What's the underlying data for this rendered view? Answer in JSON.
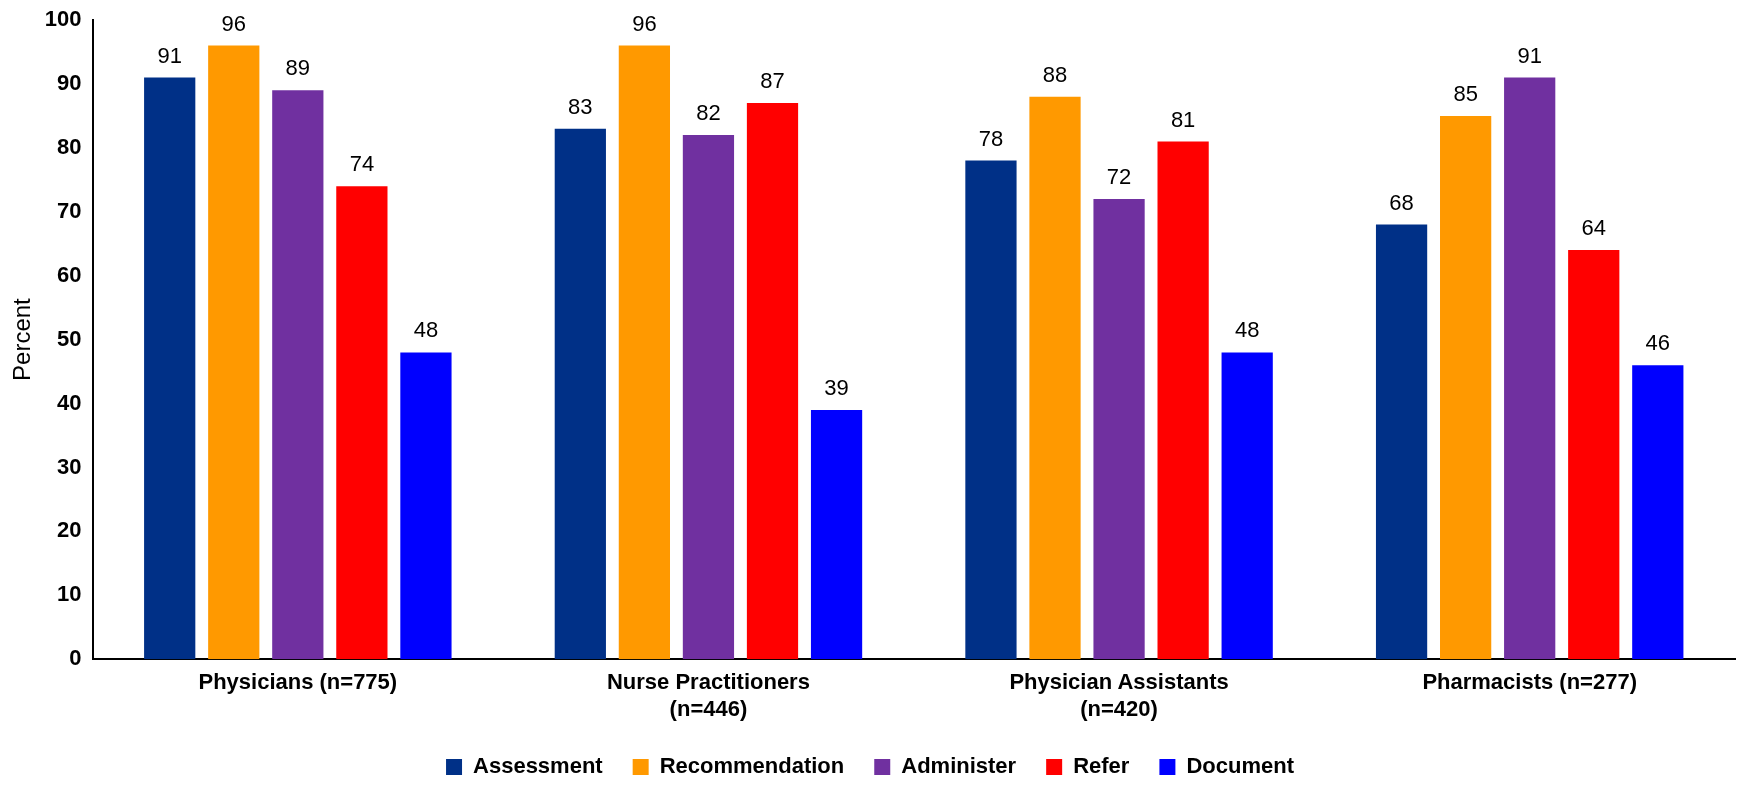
{
  "chart_data": {
    "type": "bar",
    "ylabel": "Percent",
    "categories": [
      "Physicians (n=775)",
      "Nurse Practitioners (n=446)",
      "Physician Assistants (n=420)",
      "Pharmacists (n=277)"
    ],
    "series": [
      {
        "name": "Assessment",
        "color": "#003087",
        "values": [
          91,
          83,
          78,
          68
        ]
      },
      {
        "name": "Recommendation",
        "color": "#ff9900",
        "values": [
          96,
          96,
          88,
          85
        ]
      },
      {
        "name": "Administer",
        "color": "#7030a0",
        "values": [
          89,
          82,
          72,
          91
        ]
      },
      {
        "name": "Refer",
        "color": "#ff0000",
        "values": [
          74,
          87,
          81,
          64
        ]
      },
      {
        "name": "Document",
        "color": "#0000ff",
        "values": [
          48,
          39,
          48,
          46
        ]
      }
    ],
    "ylim": [
      0,
      100
    ],
    "yticks": [
      0,
      10,
      20,
      30,
      40,
      50,
      60,
      70,
      80,
      90,
      100
    ],
    "grid": false,
    "legend": "bottom",
    "data_labels": true
  }
}
